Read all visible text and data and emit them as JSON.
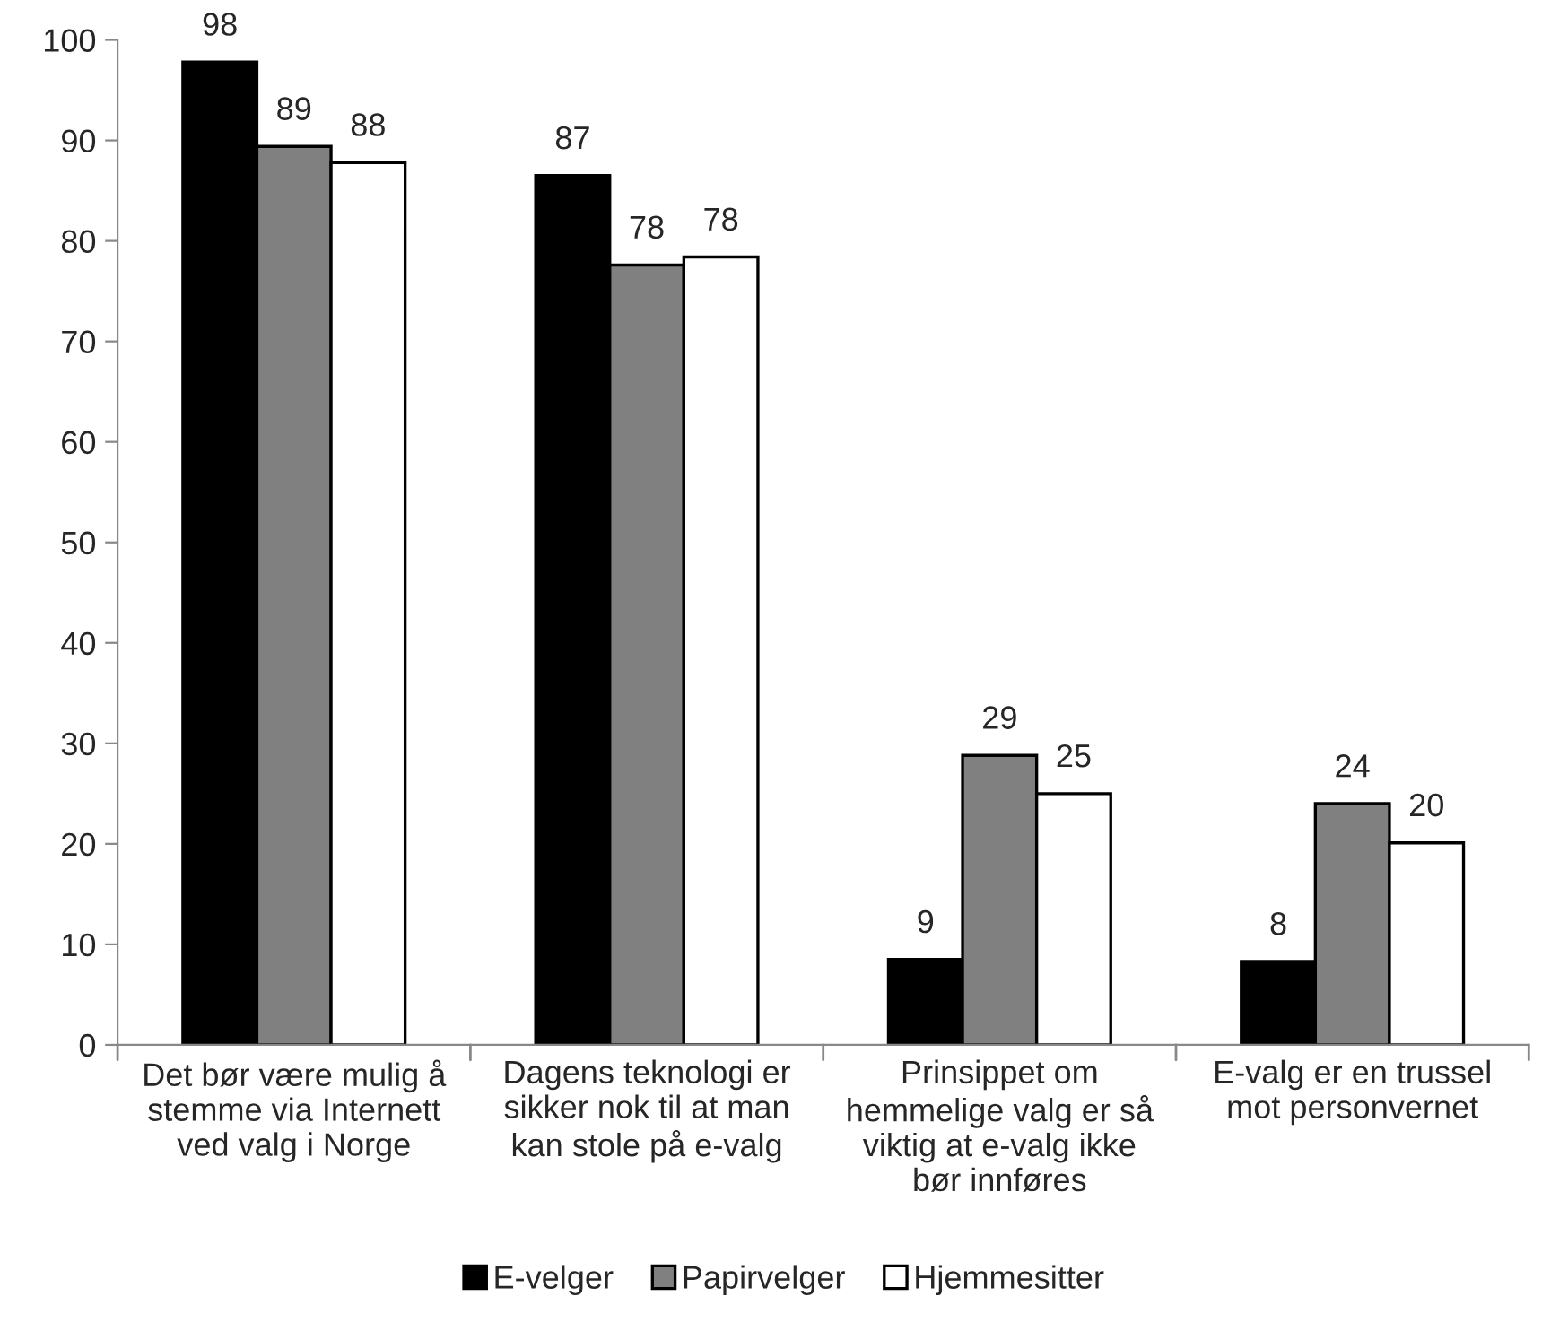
{
  "chart_data": {
    "type": "bar",
    "categories": [
      "Det bør være mulig å\nstemme via Internett\nved valg i Norge",
      "Dagens teknologi er\nsikker nok til at man\nkan stole på e-valg",
      "Prinsippet om\nhemmelige valg er så\nviktig at e-valg ikke\nbør innføres",
      "E-valg er en trussel\nmot personvernet"
    ],
    "series": [
      {
        "name": "E-velger",
        "color": "#000000",
        "values": [
          97.8,
          86.5,
          8.5,
          8.3
        ],
        "value_labels": [
          "98",
          "87",
          "9",
          "8"
        ]
      },
      {
        "name": "Papirvelger",
        "color": "#808080",
        "values": [
          89.4,
          77.6,
          28.8,
          24.0
        ],
        "value_labels": [
          "89",
          "78",
          "29",
          "24"
        ]
      },
      {
        "name": "Hjemmesitter",
        "color": "#ffffff",
        "values": [
          87.8,
          78.4,
          25.0,
          20.1
        ],
        "value_labels": [
          "88",
          "78",
          "25",
          "20"
        ]
      }
    ],
    "ylim": [
      0,
      100
    ],
    "yticks": [
      0,
      10,
      20,
      30,
      40,
      50,
      60,
      70,
      80,
      90,
      100
    ],
    "grid": false,
    "legend": "bottom"
  }
}
